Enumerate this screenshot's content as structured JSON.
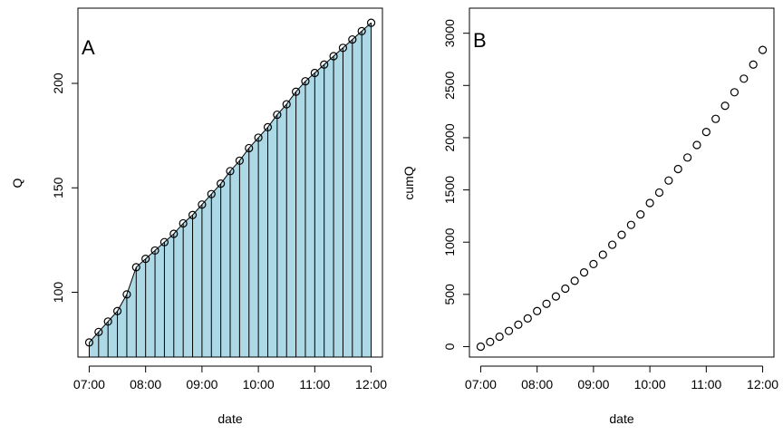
{
  "chart_data": [
    {
      "type": "area",
      "panel_label": "A",
      "xlabel": "date",
      "ylabel": "Q",
      "x": [
        "07:00",
        "07:10",
        "07:20",
        "07:30",
        "07:40",
        "07:50",
        "08:00",
        "08:10",
        "08:20",
        "08:30",
        "08:40",
        "08:50",
        "09:00",
        "09:10",
        "09:20",
        "09:30",
        "09:40",
        "09:50",
        "10:00",
        "10:10",
        "10:20",
        "10:30",
        "10:40",
        "10:50",
        "11:00",
        "11:10",
        "11:20",
        "11:30",
        "11:40",
        "11:50",
        "12:00"
      ],
      "values": [
        76,
        81,
        86,
        91,
        99,
        112,
        116,
        120,
        124,
        128,
        133,
        137,
        142,
        147,
        152,
        158,
        163,
        169,
        174,
        179,
        185,
        190,
        196,
        201,
        205,
        209,
        213,
        217,
        221,
        225,
        229
      ],
      "xticks": [
        "07:00",
        "08:00",
        "09:00",
        "10:00",
        "11:00",
        "12:00"
      ],
      "yticks": [
        100,
        150,
        200
      ],
      "ylim": [
        69,
        236
      ],
      "fill_color": "#add8e6",
      "marker": "open-circle",
      "grid": false
    },
    {
      "type": "scatter",
      "panel_label": "B",
      "xlabel": "date",
      "ylabel": "cumQ",
      "x": [
        "07:00",
        "07:10",
        "07:20",
        "07:30",
        "07:40",
        "07:50",
        "08:00",
        "08:10",
        "08:20",
        "08:30",
        "08:40",
        "08:50",
        "09:00",
        "09:10",
        "09:20",
        "09:30",
        "09:40",
        "09:50",
        "10:00",
        "10:10",
        "10:20",
        "10:30",
        "10:40",
        "10:50",
        "11:00",
        "11:10",
        "11:20",
        "11:30",
        "11:40",
        "11:50",
        "12:00"
      ],
      "values": [
        0,
        45,
        95,
        150,
        210,
        270,
        340,
        410,
        480,
        555,
        630,
        710,
        790,
        880,
        975,
        1070,
        1165,
        1265,
        1375,
        1475,
        1590,
        1700,
        1810,
        1930,
        2055,
        2180,
        2305,
        2435,
        2565,
        2700,
        2840
      ],
      "xticks": [
        "07:00",
        "08:00",
        "09:00",
        "10:00",
        "11:00",
        "12:00"
      ],
      "yticks": [
        0,
        500,
        1000,
        1500,
        2000,
        2500,
        3000
      ],
      "ylim": [
        -100,
        3240
      ],
      "marker": "open-circle",
      "grid": false
    }
  ]
}
